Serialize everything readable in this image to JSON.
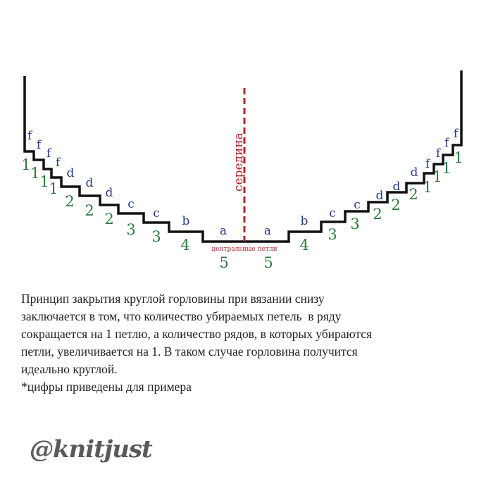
{
  "diagram": {
    "center_label": "середина",
    "central_stitches_label": "центральные петли",
    "left_letters": [
      "f",
      "f",
      "f",
      "f",
      "d",
      "d",
      "d",
      "c",
      "c",
      "b",
      "a"
    ],
    "left_numbers": [
      "1",
      "1",
      "1",
      "1",
      "2",
      "2",
      "2",
      "3",
      "3",
      "4",
      "5"
    ],
    "right_letters": [
      "a",
      "b",
      "c",
      "c",
      "d",
      "d",
      "d",
      "f",
      "f",
      "f",
      "f"
    ],
    "right_numbers": [
      "5",
      "4",
      "3",
      "3",
      "2",
      "2",
      "2",
      "1",
      "1",
      "1",
      "1"
    ],
    "colors": {
      "line": "#111111",
      "center_line": "#b0282c",
      "letters": "#263c8a",
      "numbers": "#2c7a3e"
    }
  },
  "description": {
    "lines": [
      "Принцип закрытия круглой горловины при вязании снизу",
      "заключается в том, что количество убираемых петель  в ряду",
      "сокращается на 1 петлю, а количество рядов, в которых убираются",
      "петли, увеличивается на 1. В таком случае горловина получится",
      "идеально круглой.",
      "*цифры приведены для примера"
    ]
  },
  "logo": "@knitjust"
}
